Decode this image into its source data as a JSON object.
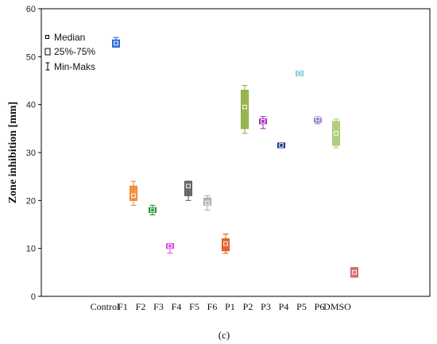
{
  "chart_data": {
    "type": "boxplot",
    "ylabel": "Zone inhibition [mm]",
    "xlabel": "",
    "ylim": [
      0,
      60
    ],
    "yticks": [
      0,
      10,
      20,
      30,
      40,
      50,
      60
    ],
    "grid": false,
    "legend": {
      "position": "top-left",
      "items": [
        "Median",
        "25%-75%",
        "Min-Maks"
      ]
    },
    "caption": "(c)",
    "categories": [
      "Control",
      "F1",
      "F2",
      "F3",
      "F4",
      "F5",
      "F6",
      "P1",
      "P2",
      "P3",
      "P4",
      "P5",
      "P6",
      "DMSO"
    ],
    "boxes": [
      {
        "label": "Control",
        "min": 52.0,
        "q1": 52.0,
        "median": 52.8,
        "q3": 53.5,
        "max": 54.0,
        "color": "#1f5fd6"
      },
      {
        "label": "F1",
        "min": 19.0,
        "q1": 20.0,
        "median": 21.0,
        "q3": 23.0,
        "max": 24.0,
        "color": "#f0822a"
      },
      {
        "label": "F2",
        "min": 17.0,
        "q1": 17.5,
        "median": 18.0,
        "q3": 18.5,
        "max": 19.0,
        "color": "#1a8a2a"
      },
      {
        "label": "F3",
        "min": 9.0,
        "q1": 10.0,
        "median": 10.5,
        "q3": 11.0,
        "max": 11.0,
        "color": "#e040e0"
      },
      {
        "label": "F4",
        "min": 20.0,
        "q1": 21.0,
        "median": 23.0,
        "q3": 24.0,
        "max": 24.0,
        "color": "#555555"
      },
      {
        "label": "F5",
        "min": 18.0,
        "q1": 19.0,
        "median": 19.5,
        "q3": 20.5,
        "max": 21.0,
        "color": "#a8a8a8"
      },
      {
        "label": "F6",
        "min": 9.0,
        "q1": 9.5,
        "median": 11.0,
        "q3": 12.0,
        "max": 13.0,
        "color": "#e0521a"
      },
      {
        "label": "P1",
        "min": 34.0,
        "q1": 35.0,
        "median": 39.5,
        "q3": 43.0,
        "max": 44.0,
        "color": "#8aaa3a"
      },
      {
        "label": "P2",
        "min": 35.0,
        "q1": 36.0,
        "median": 36.5,
        "q3": 37.0,
        "max": 37.5,
        "color": "#a020c0"
      },
      {
        "label": "P3",
        "min": 31.0,
        "q1": 31.0,
        "median": 31.5,
        "q3": 32.0,
        "max": 32.0,
        "color": "#102a8a"
      },
      {
        "label": "P4",
        "min": 46.0,
        "q1": 46.0,
        "median": 46.5,
        "q3": 47.0,
        "max": 47.0,
        "color": "#7ecbe0"
      },
      {
        "label": "P5",
        "min": 36.0,
        "q1": 36.5,
        "median": 37.0,
        "q3": 37.0,
        "max": 37.5,
        "color": "#8a7ac8"
      },
      {
        "label": "P6",
        "min": 31.0,
        "q1": 31.5,
        "median": 34.0,
        "q3": 36.5,
        "max": 37.0,
        "color": "#a8c870"
      },
      {
        "label": "DMSO",
        "min": 4.0,
        "q1": 4.0,
        "median": 5.0,
        "q3": 6.0,
        "max": 6.0,
        "color": "#d06060"
      }
    ]
  }
}
